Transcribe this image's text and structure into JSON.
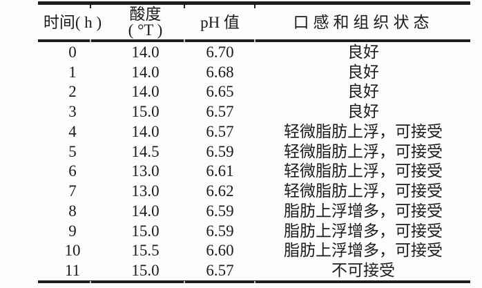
{
  "colors": {
    "background": "#fcfcfb",
    "rule": "#1e1e1e",
    "text": "#1b1b1b"
  },
  "table": {
    "columns": [
      {
        "label": "时间( h )"
      },
      {
        "label": "酸度",
        "sublabel": "( °T )"
      },
      {
        "label": "pH 值"
      },
      {
        "label": "口感和组织状态"
      }
    ],
    "rows": [
      {
        "time": "0",
        "acidity": "14.0",
        "ph": "6.70",
        "state": "良好"
      },
      {
        "time": "1",
        "acidity": "14.0",
        "ph": "6.68",
        "state": "良好"
      },
      {
        "time": "2",
        "acidity": "14.0",
        "ph": "6.65",
        "state": "良好"
      },
      {
        "time": "3",
        "acidity": "15.0",
        "ph": "6.57",
        "state": "良好"
      },
      {
        "time": "4",
        "acidity": "14.0",
        "ph": "6.57",
        "state": "轻微脂肪上浮，可接受"
      },
      {
        "time": "5",
        "acidity": "14.5",
        "ph": "6.59",
        "state": "轻微脂肪上浮，可接受"
      },
      {
        "time": "6",
        "acidity": "13.0",
        "ph": "6.61",
        "state": "轻微脂肪上浮，可接受"
      },
      {
        "time": "7",
        "acidity": "13.0",
        "ph": "6.62",
        "state": "轻微脂肪上浮，可接受"
      },
      {
        "time": "8",
        "acidity": "14.0",
        "ph": "6.59",
        "state": "脂肪上浮增多，可接受"
      },
      {
        "time": "9",
        "acidity": "15.0",
        "ph": "6.59",
        "state": "脂肪上浮增多，可接受"
      },
      {
        "time": "10",
        "acidity": "15.5",
        "ph": "6.60",
        "state": "脂肪上浮增多，可接受"
      },
      {
        "time": "11",
        "acidity": "15.0",
        "ph": "6.57",
        "state": "不可接受"
      }
    ]
  },
  "chart_data": {
    "type": "table",
    "title": "",
    "columns": [
      "时间(h)",
      "酸度(°T)",
      "pH值",
      "口感和组织状态"
    ],
    "x": [
      0,
      1,
      2,
      3,
      4,
      5,
      6,
      7,
      8,
      9,
      10,
      11
    ],
    "series": [
      {
        "name": "酸度(°T)",
        "values": [
          14.0,
          14.0,
          14.0,
          15.0,
          14.0,
          14.5,
          13.0,
          13.0,
          14.0,
          15.0,
          15.5,
          15.0
        ]
      },
      {
        "name": "pH值",
        "values": [
          6.7,
          6.68,
          6.65,
          6.57,
          6.57,
          6.59,
          6.61,
          6.62,
          6.59,
          6.59,
          6.6,
          6.57
        ]
      },
      {
        "name": "口感和组织状态",
        "values": [
          "良好",
          "良好",
          "良好",
          "良好",
          "轻微脂肪上浮，可接受",
          "轻微脂肪上浮，可接受",
          "轻微脂肪上浮，可接受",
          "轻微脂肪上浮，可接受",
          "脂肪上浮增多，可接受",
          "脂肪上浮增多，可接受",
          "脂肪上浮增多，可接受",
          "不可接受"
        ]
      }
    ]
  }
}
